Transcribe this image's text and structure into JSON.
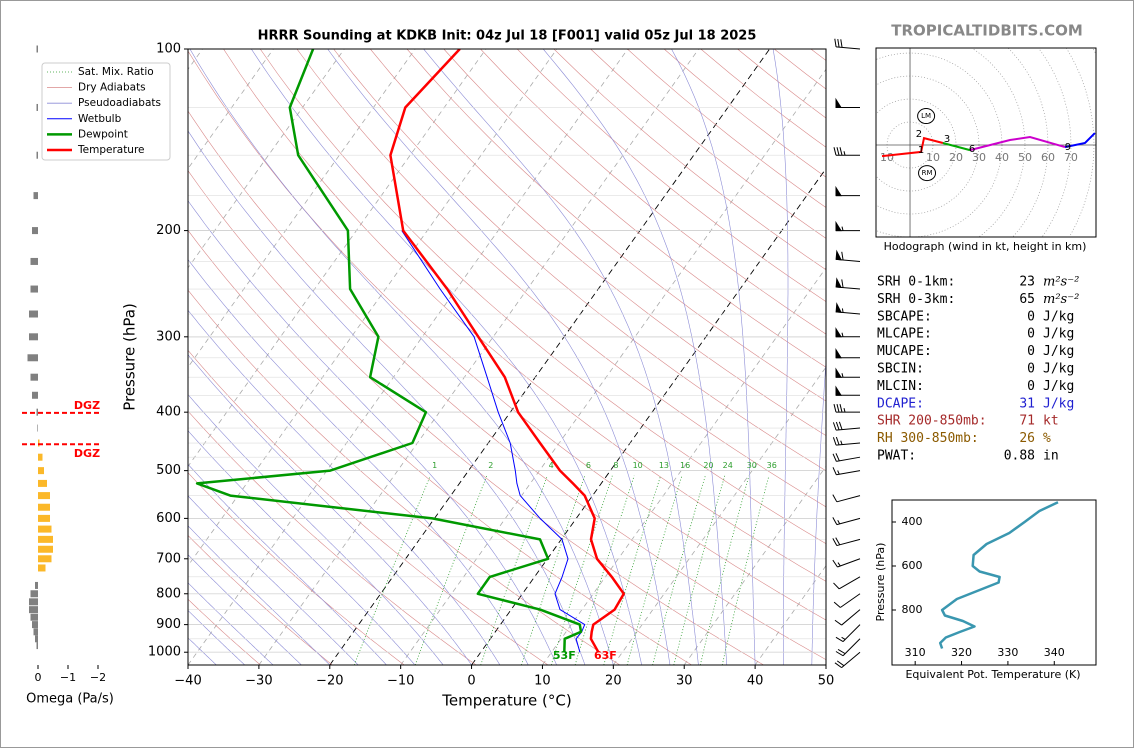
{
  "brand": "TROPICALTIDBITS.COM",
  "chart_data": [
    {
      "type": "skewt",
      "title": "HRRR Sounding at KDKB Init: 04z Jul 18 [F001] valid 05z Jul 18 2025",
      "xlabel": "Temperature (°C)",
      "ylabel": "Pressure (hPa)",
      "xlim": [
        -40,
        50
      ],
      "xticks": [
        {
          "value": -40,
          "label": "−40"
        },
        {
          "value": -30,
          "label": "−30"
        },
        {
          "value": -20,
          "label": "−20"
        },
        {
          "value": -10,
          "label": "−10"
        },
        0,
        10,
        20,
        30,
        40,
        50
      ],
      "ylim": [
        1050,
        100
      ],
      "log_y": true,
      "yticks": [
        100,
        200,
        300,
        400,
        500,
        600,
        700,
        800,
        900,
        1000
      ],
      "legend": "upper left",
      "pressure": [
        1000,
        950,
        925,
        900,
        850,
        800,
        750,
        700,
        650,
        600,
        550,
        525,
        500,
        450,
        400,
        350,
        300,
        250,
        200,
        150,
        125,
        100
      ],
      "series": [
        {
          "name": "Wetbulb",
          "color": "#0000ff",
          "values": [
            14.0,
            12.1,
            12.2,
            11.9,
            6.9,
            4.6,
            3.9,
            2.9,
            0.1,
            -5.1,
            -10.2,
            -11.9,
            -13.4,
            -16.9,
            -21.7,
            -26.8,
            -32.7,
            -42.3,
            -53.6,
            null,
            null,
            null
          ]
        },
        {
          "name": "Dewpoint",
          "color": "#009900",
          "surface_label": "53F",
          "values": [
            11.8,
            10.5,
            12.1,
            11.2,
            4.1,
            -6.3,
            -6.3,
            0.1,
            -3.0,
            -20.3,
            -51.1,
            -57.0,
            -39.5,
            -30.7,
            -31.9,
            -43.3,
            -46.2,
            -55.0,
            -61.2,
            -75.8,
            -81.8,
            -84.4
          ]
        },
        {
          "name": "Temperature",
          "color": "#ff0000",
          "surface_label": "63F",
          "values": [
            16.6,
            14.2,
            13.6,
            13.1,
            14.6,
            14.3,
            10.9,
            7.0,
            4.2,
            2.6,
            -1.1,
            -4.0,
            -7.1,
            -12.7,
            -18.9,
            -24.3,
            -32.1,
            -41.3,
            -53.4,
            -62.8,
            -65.5,
            -63.7
          ]
        }
      ],
      "reference_lines": [
        {
          "name": "Sat. Mix. Ratio",
          "color": "#2e9e2e"
        },
        {
          "name": "Dry Adiabats",
          "color": "#d98a8a"
        },
        {
          "name": "Pseudoadiabats",
          "color": "#8c8cd6"
        }
      ],
      "mixing_ratios": [
        1,
        2,
        4,
        6,
        8,
        10,
        13,
        16,
        20,
        24,
        30,
        36
      ],
      "wind": {
        "pressure": [
          100,
          125,
          150,
          175,
          200,
          225,
          250,
          275,
          300,
          325,
          350,
          375,
          400,
          425,
          450,
          475,
          500,
          550,
          600,
          650,
          700,
          750,
          800,
          850,
          900,
          950,
          1000
        ],
        "speed": [
          30,
          50,
          35,
          50,
          55,
          60,
          60,
          55,
          55,
          50,
          55,
          50,
          35,
          30,
          25,
          20,
          15,
          10,
          15,
          20,
          15,
          10,
          10,
          10,
          15,
          20,
          20
        ],
        "direction": [
          275,
          270,
          270,
          270,
          270,
          275,
          275,
          275,
          270,
          270,
          270,
          270,
          270,
          265,
          265,
          260,
          260,
          255,
          255,
          255,
          250,
          240,
          235,
          230,
          225,
          225,
          230
        ]
      }
    },
    {
      "type": "hodograph",
      "caption": "Hodograph (wind in kt, height in km)",
      "xlim": [
        -14.8,
        80.9
      ],
      "ylim": [
        -40,
        42.2
      ],
      "xticks": [
        {
          "value": -10,
          "label": "10"
        },
        10,
        20,
        30,
        40,
        50,
        60,
        70
      ],
      "segments": [
        {
          "color": "#ff0000",
          "u": [
            -12.2,
            4.8,
            6.1,
            14.3
          ],
          "v": [
            -4.8,
            -3.0,
            3.0,
            0.9
          ]
        },
        {
          "color": "#00aa00",
          "u": [
            14.3,
            26.1
          ],
          "v": [
            0.9,
            -2.2
          ]
        },
        {
          "color": "#cc00cc",
          "u": [
            26.1,
            43.5,
            52.2,
            67.4
          ],
          "v": [
            -2.2,
            2.2,
            3.5,
            -0.9
          ]
        },
        {
          "color": "#0000ff",
          "u": [
            67.4,
            76.1,
            80.4
          ],
          "v": [
            -0.9,
            0.9,
            5.2
          ]
        }
      ],
      "height_labels": [
        {
          "label": "1",
          "u": 4.8,
          "v": -2.2
        },
        {
          "label": "2",
          "u": 3.9,
          "v": 4.8
        },
        {
          "label": "3",
          "u": 16.1,
          "v": 2.6
        },
        {
          "label": "6",
          "u": 27.0,
          "v": -1.7
        },
        {
          "label": "9",
          "u": 68.7,
          "v": -0.9
        }
      ],
      "storm_motions": [
        {
          "label": "LM",
          "u": 7.0,
          "v": 12.6
        },
        {
          "label": "RM",
          "u": 7.4,
          "v": -12.2
        }
      ]
    },
    {
      "type": "line",
      "xlabel": "Equivalent Pot. Temperature (K)",
      "ylabel": "Pressure (hPa)",
      "xlim": [
        305,
        349
      ],
      "xticks": [
        310,
        320,
        330,
        340
      ],
      "ylim": [
        1050,
        300
      ],
      "yticks": [
        400,
        600,
        800
      ],
      "series": [
        {
          "color": "#3a97b0",
          "pressure": [
            310,
            350,
            400,
            450,
            500,
            550,
            600,
            625,
            650,
            675,
            700,
            750,
            800,
            825,
            850,
            875,
            900,
            925,
            950,
            975
          ],
          "values": [
            340.8,
            336.8,
            333.6,
            330.3,
            325.4,
            322.6,
            322.4,
            323.9,
            328.2,
            328.0,
            325.0,
            319.0,
            315.8,
            316.4,
            320.3,
            322.8,
            319.6,
            316.6,
            315.4,
            315.8
          ]
        }
      ]
    },
    {
      "type": "bar",
      "orientation": "horizontal",
      "xlabel": "Omega (Pa/s)",
      "xlim": [
        0.5,
        -2
      ],
      "xticks": [
        0,
        {
          "value": -1,
          "label": "−1"
        },
        {
          "value": -2,
          "label": "−2"
        }
      ],
      "ylim": [
        1050,
        100
      ],
      "positive_color": "#808080",
      "negative_color": "#fbb829",
      "pressure": [
        100,
        125,
        150,
        175,
        200,
        225,
        250,
        275,
        300,
        325,
        350,
        375,
        400,
        425,
        450,
        475,
        500,
        525,
        550,
        575,
        600,
        625,
        650,
        675,
        700,
        725,
        775,
        800,
        825,
        850,
        875,
        900,
        925,
        950,
        975
      ],
      "values": [
        0.05,
        0.05,
        0.05,
        0.15,
        0.2,
        0.25,
        0.25,
        0.3,
        0.3,
        0.35,
        0.25,
        0.2,
        0.05,
        0.02,
        -0.05,
        -0.15,
        -0.2,
        -0.3,
        -0.4,
        -0.4,
        -0.4,
        -0.45,
        -0.5,
        -0.5,
        -0.45,
        -0.25,
        0.1,
        0.25,
        0.3,
        0.3,
        0.25,
        0.2,
        0.15,
        0.1,
        0.05
      ],
      "dgz": {
        "color": "#ff0000",
        "pressure": [
          401,
          452
        ],
        "labels": [
          "DGZ",
          "DGZ"
        ]
      }
    }
  ],
  "indices": {
    "rows": [
      {
        "label": "SRH 0-1km:",
        "value": 23,
        "unit": "m²s⁻²",
        "color": "#000000"
      },
      {
        "label": "SRH 0-3km:",
        "value": 65,
        "unit": "m²s⁻²",
        "color": "#000000"
      },
      {
        "label": "SBCAPE:",
        "value": 0,
        "unit": "J/kg",
        "color": "#000000"
      },
      {
        "label": "MLCAPE:",
        "value": 0,
        "unit": "J/kg",
        "color": "#000000"
      },
      {
        "label": "MUCAPE:",
        "value": 0,
        "unit": "J/kg",
        "color": "#000000"
      },
      {
        "label": "SBCIN:",
        "value": 0,
        "unit": "J/kg",
        "color": "#000000"
      },
      {
        "label": "MLCIN:",
        "value": 0,
        "unit": "J/kg",
        "color": "#000000"
      },
      {
        "label": "DCAPE:",
        "value": 31,
        "unit": "J/kg",
        "color": "#1f1fd0"
      },
      {
        "label": "SHR 200-850mb:",
        "value": 71,
        "unit": "kt",
        "color": "#a52a2a"
      },
      {
        "label": "RH 300-850mb:",
        "value": 26,
        "unit": "%",
        "color": "#8b5a00"
      },
      {
        "label": "PWAT:",
        "value": 0.88,
        "unit": "in",
        "color": "#000000"
      }
    ]
  }
}
